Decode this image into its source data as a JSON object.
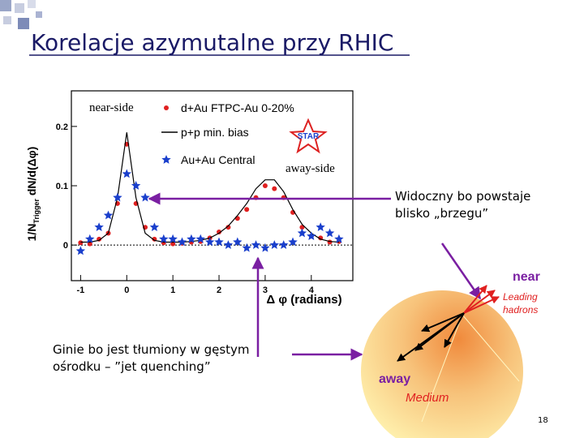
{
  "slide": {
    "title": "Korelacje azymutalne przy RHIC",
    "near_side": "near-side",
    "away_side": "away-side",
    "visible_note": [
      "Widoczny bo powstaje",
      "blisko „brzegu”"
    ],
    "vanish_note": [
      "Ginie bo jest tłumiony w gęstym",
      "ośrodku – ”jet quenching”"
    ],
    "diagram": {
      "near": "near",
      "leading": [
        "Leading",
        "hadrons"
      ],
      "away": "away",
      "medium": "Medium"
    },
    "page_number": "18",
    "logo": "STAR"
  },
  "chart_data": {
    "type": "line",
    "x_label": "Δ φ (radians)",
    "y_label": {
      "main": "1/N",
      "sub": "Trigger",
      "rest": " dN/d(Δφ)"
    },
    "x": [
      -1,
      -0.8,
      -0.6,
      -0.4,
      -0.2,
      0,
      0.2,
      0.4,
      0.6,
      0.8,
      1.0,
      1.2,
      1.4,
      1.6,
      1.8,
      2.0,
      2.2,
      2.4,
      2.6,
      2.8,
      3.0,
      3.2,
      3.4,
      3.6,
      3.8,
      4.0,
      4.2,
      4.4,
      4.6
    ],
    "series": [
      {
        "name": "d+Au FTPC-Au 0-20%",
        "color": "#e02020",
        "marker": "circle",
        "values": [
          0.004,
          0.002,
          0.01,
          0.02,
          0.07,
          0.17,
          0.07,
          0.03,
          0.01,
          0.004,
          0.002,
          0.003,
          0.005,
          0.006,
          0.012,
          0.022,
          0.03,
          0.045,
          0.06,
          0.08,
          0.1,
          0.095,
          0.08,
          0.055,
          0.03,
          0.015,
          0.012,
          0.005,
          0.006
        ]
      },
      {
        "name": "p+p min. bias",
        "color": "#000000",
        "marker": "line",
        "values": [
          0.005,
          0.005,
          0.008,
          0.02,
          0.08,
          0.19,
          0.08,
          0.02,
          0.008,
          0.005,
          0.005,
          0.005,
          0.006,
          0.008,
          0.012,
          0.02,
          0.032,
          0.05,
          0.07,
          0.095,
          0.11,
          0.11,
          0.09,
          0.06,
          0.035,
          0.02,
          0.01,
          0.006,
          0.005
        ]
      },
      {
        "name": "Au+Au Central",
        "color": "#1a3fcc",
        "marker": "star",
        "values": [
          -0.01,
          0.01,
          0.03,
          0.05,
          0.08,
          0.12,
          0.1,
          0.08,
          0.03,
          0.01,
          0.01,
          0.005,
          0.01,
          0.01,
          0.005,
          0.005,
          0.0,
          0.005,
          -0.005,
          0.0,
          -0.005,
          0.0,
          0.0,
          0.005,
          0.02,
          0.015,
          0.03,
          0.02,
          0.01
        ]
      }
    ],
    "xlim": [
      -1.2,
      4.9
    ],
    "ylim": [
      -0.06,
      0.26
    ],
    "xticks": [
      -1,
      0,
      1,
      2,
      3,
      4
    ],
    "yticks": [
      0,
      0.1,
      0.2
    ],
    "grid": false
  }
}
